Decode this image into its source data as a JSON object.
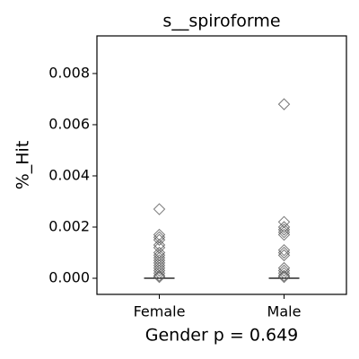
{
  "chart_data": {
    "type": "box",
    "title": "s__spiroforme",
    "x_label": "Gender p = 0.649",
    "y_label": "%_Hit",
    "categories": [
      "Female",
      "Male"
    ],
    "boxes": [
      {
        "whislo": 0,
        "q1": 0,
        "median": 0,
        "q3": 0,
        "whishi": 0,
        "fliers": [
          0.0027,
          0.0017,
          0.0016,
          0.0015,
          0.0013,
          0.0012,
          0.001,
          0.0009,
          0.0008,
          0.0007,
          0.0006,
          0.0005,
          0.0004,
          0.0003,
          0.0002,
          0.0001,
          5e-05
        ]
      },
      {
        "whislo": 0,
        "q1": 0,
        "median": 0,
        "q3": 0,
        "whishi": 0,
        "fliers": [
          0.0068,
          0.0022,
          0.002,
          0.0019,
          0.0018,
          0.0017,
          0.0011,
          0.001,
          0.0009,
          0.0004,
          0.0003,
          0.0002,
          0.0001,
          5e-05
        ]
      }
    ],
    "flier_color": "#555555",
    "box_color": "#000000",
    "ylim": [
      -0.00063,
      0.00947
    ],
    "yticks": [
      {
        "value": 0,
        "label": "0.000"
      },
      {
        "value": 0.002,
        "label": "0.002"
      },
      {
        "value": 0.004,
        "label": "0.004"
      },
      {
        "value": 0.006,
        "label": "0.006"
      },
      {
        "value": 0.008,
        "label": "0.008"
      }
    ]
  }
}
